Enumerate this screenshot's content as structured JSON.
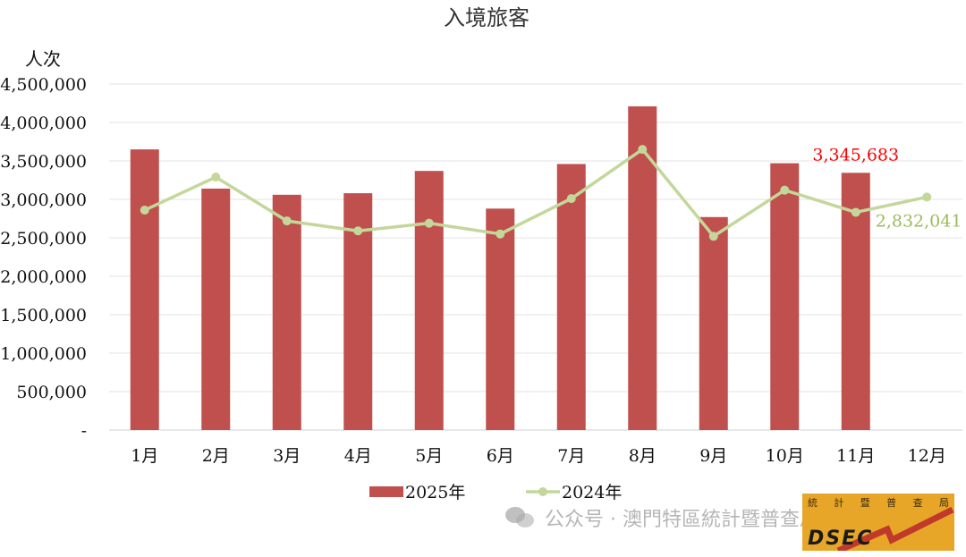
{
  "chart_data": {
    "type": "bar+line",
    "title": "入境旅客",
    "ylabel": "人次",
    "ylim": [
      0,
      4500000
    ],
    "yticks": [
      "-",
      "500,000",
      "1,000,000",
      "1,500,000",
      "2,000,000",
      "2,500,000",
      "3,000,000",
      "3,500,000",
      "4,000,000",
      "4,500,000"
    ],
    "categories": [
      "1月",
      "2月",
      "3月",
      "4月",
      "5月",
      "6月",
      "7月",
      "8月",
      "9月",
      "10月",
      "11月",
      "12月"
    ],
    "series": [
      {
        "name": "2025年",
        "kind": "bar",
        "color": "#c0504d",
        "values": [
          3650000,
          3140000,
          3060000,
          3080000,
          3370000,
          2880000,
          3460000,
          4210000,
          2770000,
          3470000,
          3345683,
          null
        ]
      },
      {
        "name": "2024年",
        "kind": "line",
        "color": "#c4d79b",
        "values": [
          2860000,
          3290000,
          2720000,
          2590000,
          2690000,
          2550000,
          3010000,
          3650000,
          2520000,
          3120000,
          2832041,
          3030000
        ]
      }
    ],
    "annotations": [
      {
        "text": "3,345,683",
        "series": 0,
        "index": 10,
        "color": "#ff0000"
      },
      {
        "text": "2,832,041",
        "series": 1,
        "index": 10,
        "color": "#9bbb59"
      }
    ],
    "grid": true,
    "legend": "bottom"
  },
  "watermark": {
    "text": "公众号 · 澳門特區統計暨普查局"
  },
  "logo": {
    "chars": [
      "統",
      "計",
      "暨",
      "普",
      "查",
      "局"
    ],
    "text": "DSEC"
  }
}
